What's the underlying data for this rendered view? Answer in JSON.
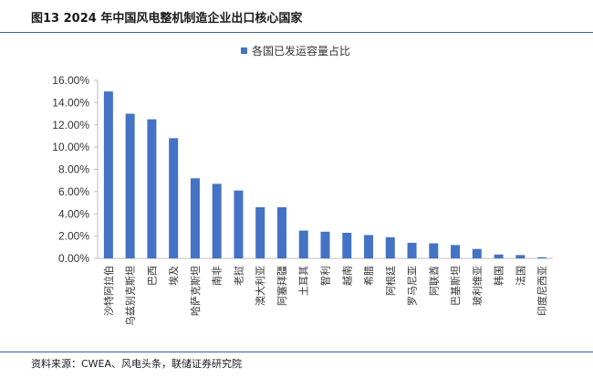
{
  "header": {
    "title": "图13 2024 年中国风电整机制造企业出口核心国家"
  },
  "footer": {
    "source": "资料来源：CWEA、风电头条，联储证券研究院"
  },
  "colors": {
    "bar": "#4472C4",
    "axis": "#bfbfbf",
    "rule": "#3d5da8"
  },
  "chart_data": {
    "type": "bar",
    "categories": [
      "沙特阿拉伯",
      "乌兹别克斯坦",
      "巴西",
      "埃及",
      "哈萨克斯坦",
      "南非",
      "老挝",
      "澳大利亚",
      "阿塞拜疆",
      "土耳其",
      "智利",
      "越南",
      "希腊",
      "阿根廷",
      "罗马尼亚",
      "阿联酋",
      "巴基斯坦",
      "玻利维亚",
      "韩国",
      "法国",
      "印度尼西亚"
    ],
    "series": [
      {
        "name": "各国已发运容量占比",
        "values": [
          15.0,
          13.0,
          12.5,
          10.8,
          7.2,
          6.7,
          6.1,
          4.6,
          4.6,
          2.5,
          2.4,
          2.3,
          2.1,
          1.9,
          1.4,
          1.35,
          1.2,
          0.85,
          0.35,
          0.3,
          0.1
        ]
      }
    ],
    "ylim": [
      0,
      16
    ],
    "yticks": [
      0,
      2,
      4,
      6,
      8,
      10,
      12,
      14,
      16
    ],
    "ytick_labels": [
      "0.00%",
      "2.00%",
      "4.00%",
      "6.00%",
      "8.00%",
      "10.00%",
      "12.00%",
      "14.00%",
      "16.00%"
    ],
    "legend_position": "top",
    "grid": false
  }
}
